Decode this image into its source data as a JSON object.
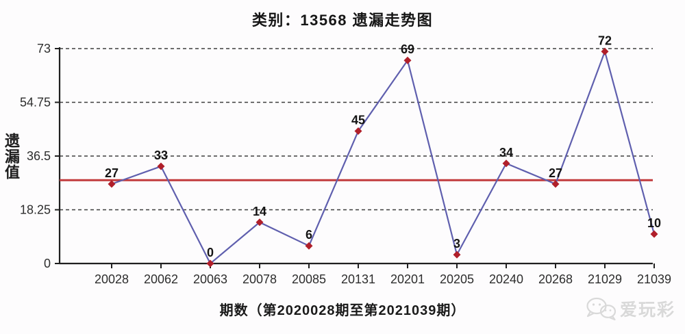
{
  "chart_data": {
    "type": "line",
    "title": "类别：13568 遗漏走势图",
    "xlabel": "期数（第2020028期至第2021039期）",
    "ylabel": "遗漏值",
    "categories": [
      "20028",
      "20062",
      "20063",
      "20078",
      "20085",
      "20131",
      "20201",
      "20205",
      "20240",
      "20268",
      "21029",
      "21039"
    ],
    "values": [
      27,
      33,
      0,
      14,
      6,
      45,
      69,
      3,
      34,
      27,
      72,
      10
    ],
    "yticks": [
      0,
      18.25,
      36.5,
      54.75,
      73
    ],
    "ylim": [
      0,
      73
    ],
    "grid": "horizontal-dashed",
    "legend": "none",
    "data_labels": true,
    "average_line": {
      "value": 28.3,
      "color": "#c23a3c"
    },
    "line_color": "#5f5fae",
    "marker": {
      "shape": "diamond",
      "color": "#b01f2a"
    },
    "gridline_color": "#3c3c3c",
    "axis_color": "#1f1f1f",
    "label_color": "#141414",
    "tick_label_color": "#2d2d2d"
  },
  "watermark": {
    "text": "爱玩彩",
    "icon": "wechat-chat-bubbles-icon",
    "color": "#d9d9d9"
  }
}
